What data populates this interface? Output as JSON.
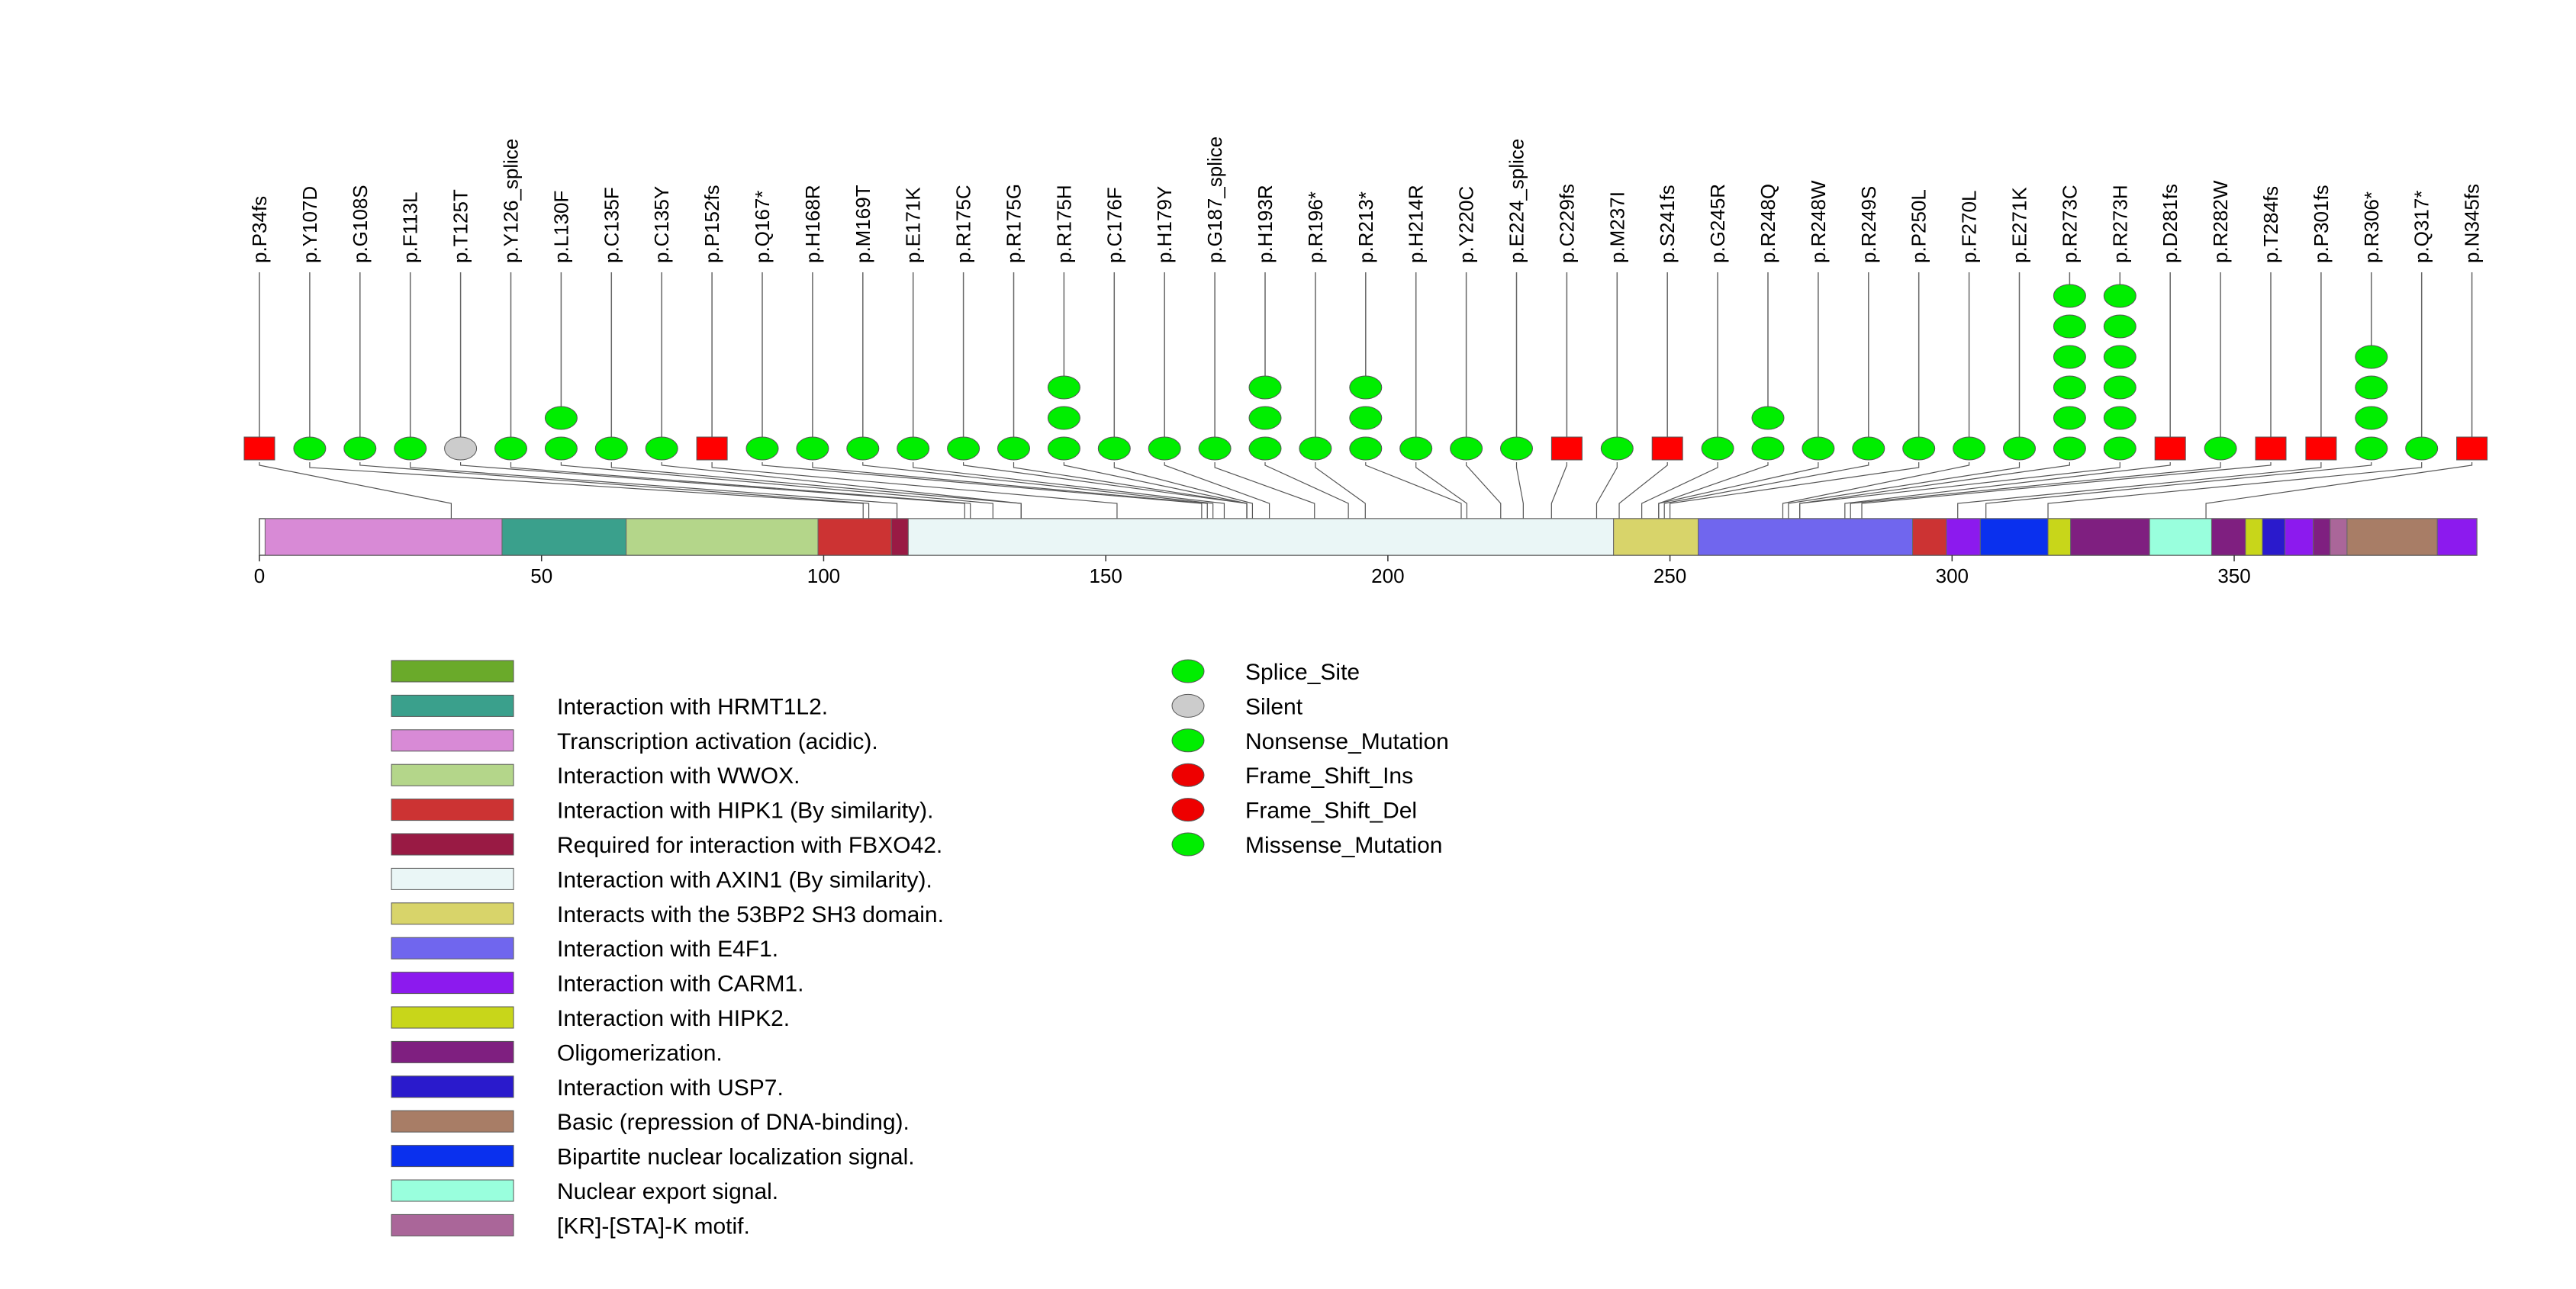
{
  "chart_data": {
    "type": "lollipop",
    "axis": {
      "min": 0,
      "max": 393,
      "ticks": [
        0,
        50,
        100,
        150,
        200,
        250,
        300,
        350
      ]
    },
    "domains": [
      {
        "name": "Transcription activation (acidic).",
        "start": 1,
        "end": 43,
        "color": "#d88ad6"
      },
      {
        "name": "Interaction with HRMT1L2.",
        "start": 43,
        "end": 65,
        "color": "#3aa08c"
      },
      {
        "name": "Interaction with WWOX.",
        "start": 65,
        "end": 99,
        "color": "#b4d68a"
      },
      {
        "name": "Interaction with HIPK1 (By similarity).",
        "start": 99,
        "end": 112,
        "color": "#cc3333"
      },
      {
        "name": "Required for interaction with FBXO42.",
        "start": 112,
        "end": 115,
        "color": "#991a44"
      },
      {
        "name": "Interaction with AXIN1 (By similarity).",
        "start": 115,
        "end": 240,
        "color": "#eaf6f6"
      },
      {
        "name": "Interacts with the 53BP2 SH3 domain.",
        "start": 240,
        "end": 255,
        "color": "#d8d46a"
      },
      {
        "name": "Interaction with E4F1.",
        "start": 255,
        "end": 293,
        "color": "#7066ee"
      },
      {
        "name": "Interaction with HIPK1 (By similarity).",
        "start": 293,
        "end": 299,
        "color": "#cc3333"
      },
      {
        "name": "Interaction with CARM1.",
        "start": 299,
        "end": 305,
        "color": "#8c1aee"
      },
      {
        "name": "Bipartite nuclear localization signal.",
        "start": 305,
        "end": 317,
        "color": "#0a30ee"
      },
      {
        "name": "Interaction with HIPK2.",
        "start": 317,
        "end": 321,
        "color": "#c8d61a"
      },
      {
        "name": "Oligomerization.",
        "start": 321,
        "end": 335,
        "color": "#7f1f80"
      },
      {
        "name": "Nuclear export signal.",
        "start": 335,
        "end": 346,
        "color": "#99ffdd"
      },
      {
        "name": "Oligomerization.",
        "start": 346,
        "end": 352,
        "color": "#7f1f80"
      },
      {
        "name": "Interaction with HIPK2.",
        "start": 352,
        "end": 355,
        "color": "#c8d61a"
      },
      {
        "name": "Interaction with USP7.",
        "start": 355,
        "end": 359,
        "color": "#2a1acc"
      },
      {
        "name": "Interaction with CARM1.",
        "start": 359,
        "end": 364,
        "color": "#8c1aee"
      },
      {
        "name": "Oligomerization.",
        "start": 364,
        "end": 367,
        "color": "#7f1f80"
      },
      {
        "name": "[KR]-[STA]-K motif.",
        "start": 367,
        "end": 370,
        "color": "#aa6699"
      },
      {
        "name": "Basic (repression of DNA-binding).",
        "start": 370,
        "end": 386,
        "color": "#a87d66"
      },
      {
        "name": "Interaction with CARM1.",
        "start": 386,
        "end": 393,
        "color": "#8c1aee"
      }
    ],
    "mutations": [
      {
        "label": "p.P34fs",
        "pos": 34,
        "count": 1,
        "shape": "rect",
        "color": "#ff0000"
      },
      {
        "label": "p.Y107D",
        "pos": 107,
        "count": 1,
        "shape": "ellipse",
        "color": "#00ee00"
      },
      {
        "label": "p.G108S",
        "pos": 108,
        "count": 1,
        "shape": "ellipse",
        "color": "#00ee00"
      },
      {
        "label": "p.F113L",
        "pos": 113,
        "count": 1,
        "shape": "ellipse",
        "color": "#00ee00"
      },
      {
        "label": "p.T125T",
        "pos": 125,
        "count": 1,
        "shape": "ellipse",
        "color": "#cccccc"
      },
      {
        "label": "p.Y126_splice",
        "pos": 126,
        "count": 1,
        "shape": "ellipse",
        "color": "#00ee00"
      },
      {
        "label": "p.L130F",
        "pos": 130,
        "count": 2,
        "shape": "ellipse",
        "color": "#00ee00"
      },
      {
        "label": "p.C135F",
        "pos": 135,
        "count": 1,
        "shape": "ellipse",
        "color": "#00ee00"
      },
      {
        "label": "p.C135Y",
        "pos": 135,
        "count": 1,
        "shape": "ellipse",
        "color": "#00ee00"
      },
      {
        "label": "p.P152fs",
        "pos": 152,
        "count": 1,
        "shape": "rect",
        "color": "#ff0000"
      },
      {
        "label": "p.Q167*",
        "pos": 167,
        "count": 1,
        "shape": "ellipse",
        "color": "#00ee00"
      },
      {
        "label": "p.H168R",
        "pos": 168,
        "count": 1,
        "shape": "ellipse",
        "color": "#00ee00"
      },
      {
        "label": "p.M169T",
        "pos": 169,
        "count": 1,
        "shape": "ellipse",
        "color": "#00ee00"
      },
      {
        "label": "p.E171K",
        "pos": 171,
        "count": 1,
        "shape": "ellipse",
        "color": "#00ee00"
      },
      {
        "label": "p.R175C",
        "pos": 175,
        "count": 1,
        "shape": "ellipse",
        "color": "#00ee00"
      },
      {
        "label": "p.R175G",
        "pos": 175,
        "count": 1,
        "shape": "ellipse",
        "color": "#00ee00"
      },
      {
        "label": "p.R175H",
        "pos": 175,
        "count": 3,
        "shape": "ellipse",
        "color": "#00ee00"
      },
      {
        "label": "p.C176F",
        "pos": 176,
        "count": 1,
        "shape": "ellipse",
        "color": "#00ee00"
      },
      {
        "label": "p.H179Y",
        "pos": 179,
        "count": 1,
        "shape": "ellipse",
        "color": "#00ee00"
      },
      {
        "label": "p.G187_splice",
        "pos": 187,
        "count": 1,
        "shape": "ellipse",
        "color": "#00ee00"
      },
      {
        "label": "p.H193R",
        "pos": 193,
        "count": 3,
        "shape": "ellipse",
        "color": "#00ee00"
      },
      {
        "label": "p.R196*",
        "pos": 196,
        "count": 1,
        "shape": "ellipse",
        "color": "#00ee00"
      },
      {
        "label": "p.R213*",
        "pos": 213,
        "count": 3,
        "shape": "ellipse",
        "color": "#00ee00"
      },
      {
        "label": "p.H214R",
        "pos": 214,
        "count": 1,
        "shape": "ellipse",
        "color": "#00ee00"
      },
      {
        "label": "p.Y220C",
        "pos": 220,
        "count": 1,
        "shape": "ellipse",
        "color": "#00ee00"
      },
      {
        "label": "p.E224_splice",
        "pos": 224,
        "count": 1,
        "shape": "ellipse",
        "color": "#00ee00"
      },
      {
        "label": "p.C229fs",
        "pos": 229,
        "count": 1,
        "shape": "rect",
        "color": "#ff0000"
      },
      {
        "label": "p.M237I",
        "pos": 237,
        "count": 1,
        "shape": "ellipse",
        "color": "#00ee00"
      },
      {
        "label": "p.S241fs",
        "pos": 241,
        "count": 1,
        "shape": "rect",
        "color": "#ff0000"
      },
      {
        "label": "p.G245R",
        "pos": 245,
        "count": 1,
        "shape": "ellipse",
        "color": "#00ee00"
      },
      {
        "label": "p.R248Q",
        "pos": 248,
        "count": 2,
        "shape": "ellipse",
        "color": "#00ee00"
      },
      {
        "label": "p.R248W",
        "pos": 248,
        "count": 1,
        "shape": "ellipse",
        "color": "#00ee00"
      },
      {
        "label": "p.R249S",
        "pos": 249,
        "count": 1,
        "shape": "ellipse",
        "color": "#00ee00"
      },
      {
        "label": "p.P250L",
        "pos": 250,
        "count": 1,
        "shape": "ellipse",
        "color": "#00ee00"
      },
      {
        "label": "p.F270L",
        "pos": 270,
        "count": 1,
        "shape": "ellipse",
        "color": "#00ee00"
      },
      {
        "label": "p.E271K",
        "pos": 271,
        "count": 1,
        "shape": "ellipse",
        "color": "#00ee00"
      },
      {
        "label": "p.R273C",
        "pos": 273,
        "count": 6,
        "shape": "ellipse",
        "color": "#00ee00"
      },
      {
        "label": "p.R273H",
        "pos": 273,
        "count": 6,
        "shape": "ellipse",
        "color": "#00ee00"
      },
      {
        "label": "p.D281fs",
        "pos": 281,
        "count": 1,
        "shape": "rect",
        "color": "#ff0000"
      },
      {
        "label": "p.R282W",
        "pos": 282,
        "count": 1,
        "shape": "ellipse",
        "color": "#00ee00"
      },
      {
        "label": "p.T284fs",
        "pos": 284,
        "count": 1,
        "shape": "rect",
        "color": "#ff0000"
      },
      {
        "label": "p.P301fs",
        "pos": 301,
        "count": 1,
        "shape": "rect",
        "color": "#ff0000"
      },
      {
        "label": "p.R306*",
        "pos": 306,
        "count": 4,
        "shape": "ellipse",
        "color": "#00ee00"
      },
      {
        "label": "p.Q317*",
        "pos": 317,
        "count": 1,
        "shape": "ellipse",
        "color": "#00ee00"
      },
      {
        "label": "p.N345fs",
        "pos": 345,
        "count": 1,
        "shape": "rect",
        "color": "#ff0000"
      }
    ],
    "domain_legend": [
      {
        "name": "",
        "color": "#6aaa2a"
      },
      {
        "name": "Interaction with HRMT1L2.",
        "color": "#3aa08c"
      },
      {
        "name": "Transcription activation (acidic).",
        "color": "#d88ad6"
      },
      {
        "name": "Interaction with WWOX.",
        "color": "#b4d68a"
      },
      {
        "name": "Interaction with HIPK1 (By similarity).",
        "color": "#cc3333"
      },
      {
        "name": "Required for interaction with FBXO42.",
        "color": "#991a44"
      },
      {
        "name": "Interaction with AXIN1 (By similarity).",
        "color": "#eaf6f6"
      },
      {
        "name": "Interacts with the 53BP2 SH3 domain.",
        "color": "#d8d46a"
      },
      {
        "name": "Interaction with E4F1.",
        "color": "#7066ee"
      },
      {
        "name": "Interaction with CARM1.",
        "color": "#8c1aee"
      },
      {
        "name": "Interaction with HIPK2.",
        "color": "#c8d61a"
      },
      {
        "name": "Oligomerization.",
        "color": "#7f1f80"
      },
      {
        "name": "Interaction with USP7.",
        "color": "#2a1acc"
      },
      {
        "name": "Basic (repression of DNA-binding).",
        "color": "#a87d66"
      },
      {
        "name": "Bipartite nuclear localization signal.",
        "color": "#0a30ee"
      },
      {
        "name": "Nuclear export signal.",
        "color": "#99ffdd"
      },
      {
        "name": "[KR]-[STA]-K motif.",
        "color": "#aa6699"
      }
    ],
    "mutation_legend": [
      {
        "name": "Splice_Site",
        "color": "#00ee00"
      },
      {
        "name": "Silent",
        "color": "#cccccc"
      },
      {
        "name": "Nonsense_Mutation",
        "color": "#00ee00"
      },
      {
        "name": "Frame_Shift_Ins",
        "color": "#ee0000"
      },
      {
        "name": "Frame_Shift_Del",
        "color": "#ee0000"
      },
      {
        "name": "Missense_Mutation",
        "color": "#00ee00"
      }
    ]
  }
}
